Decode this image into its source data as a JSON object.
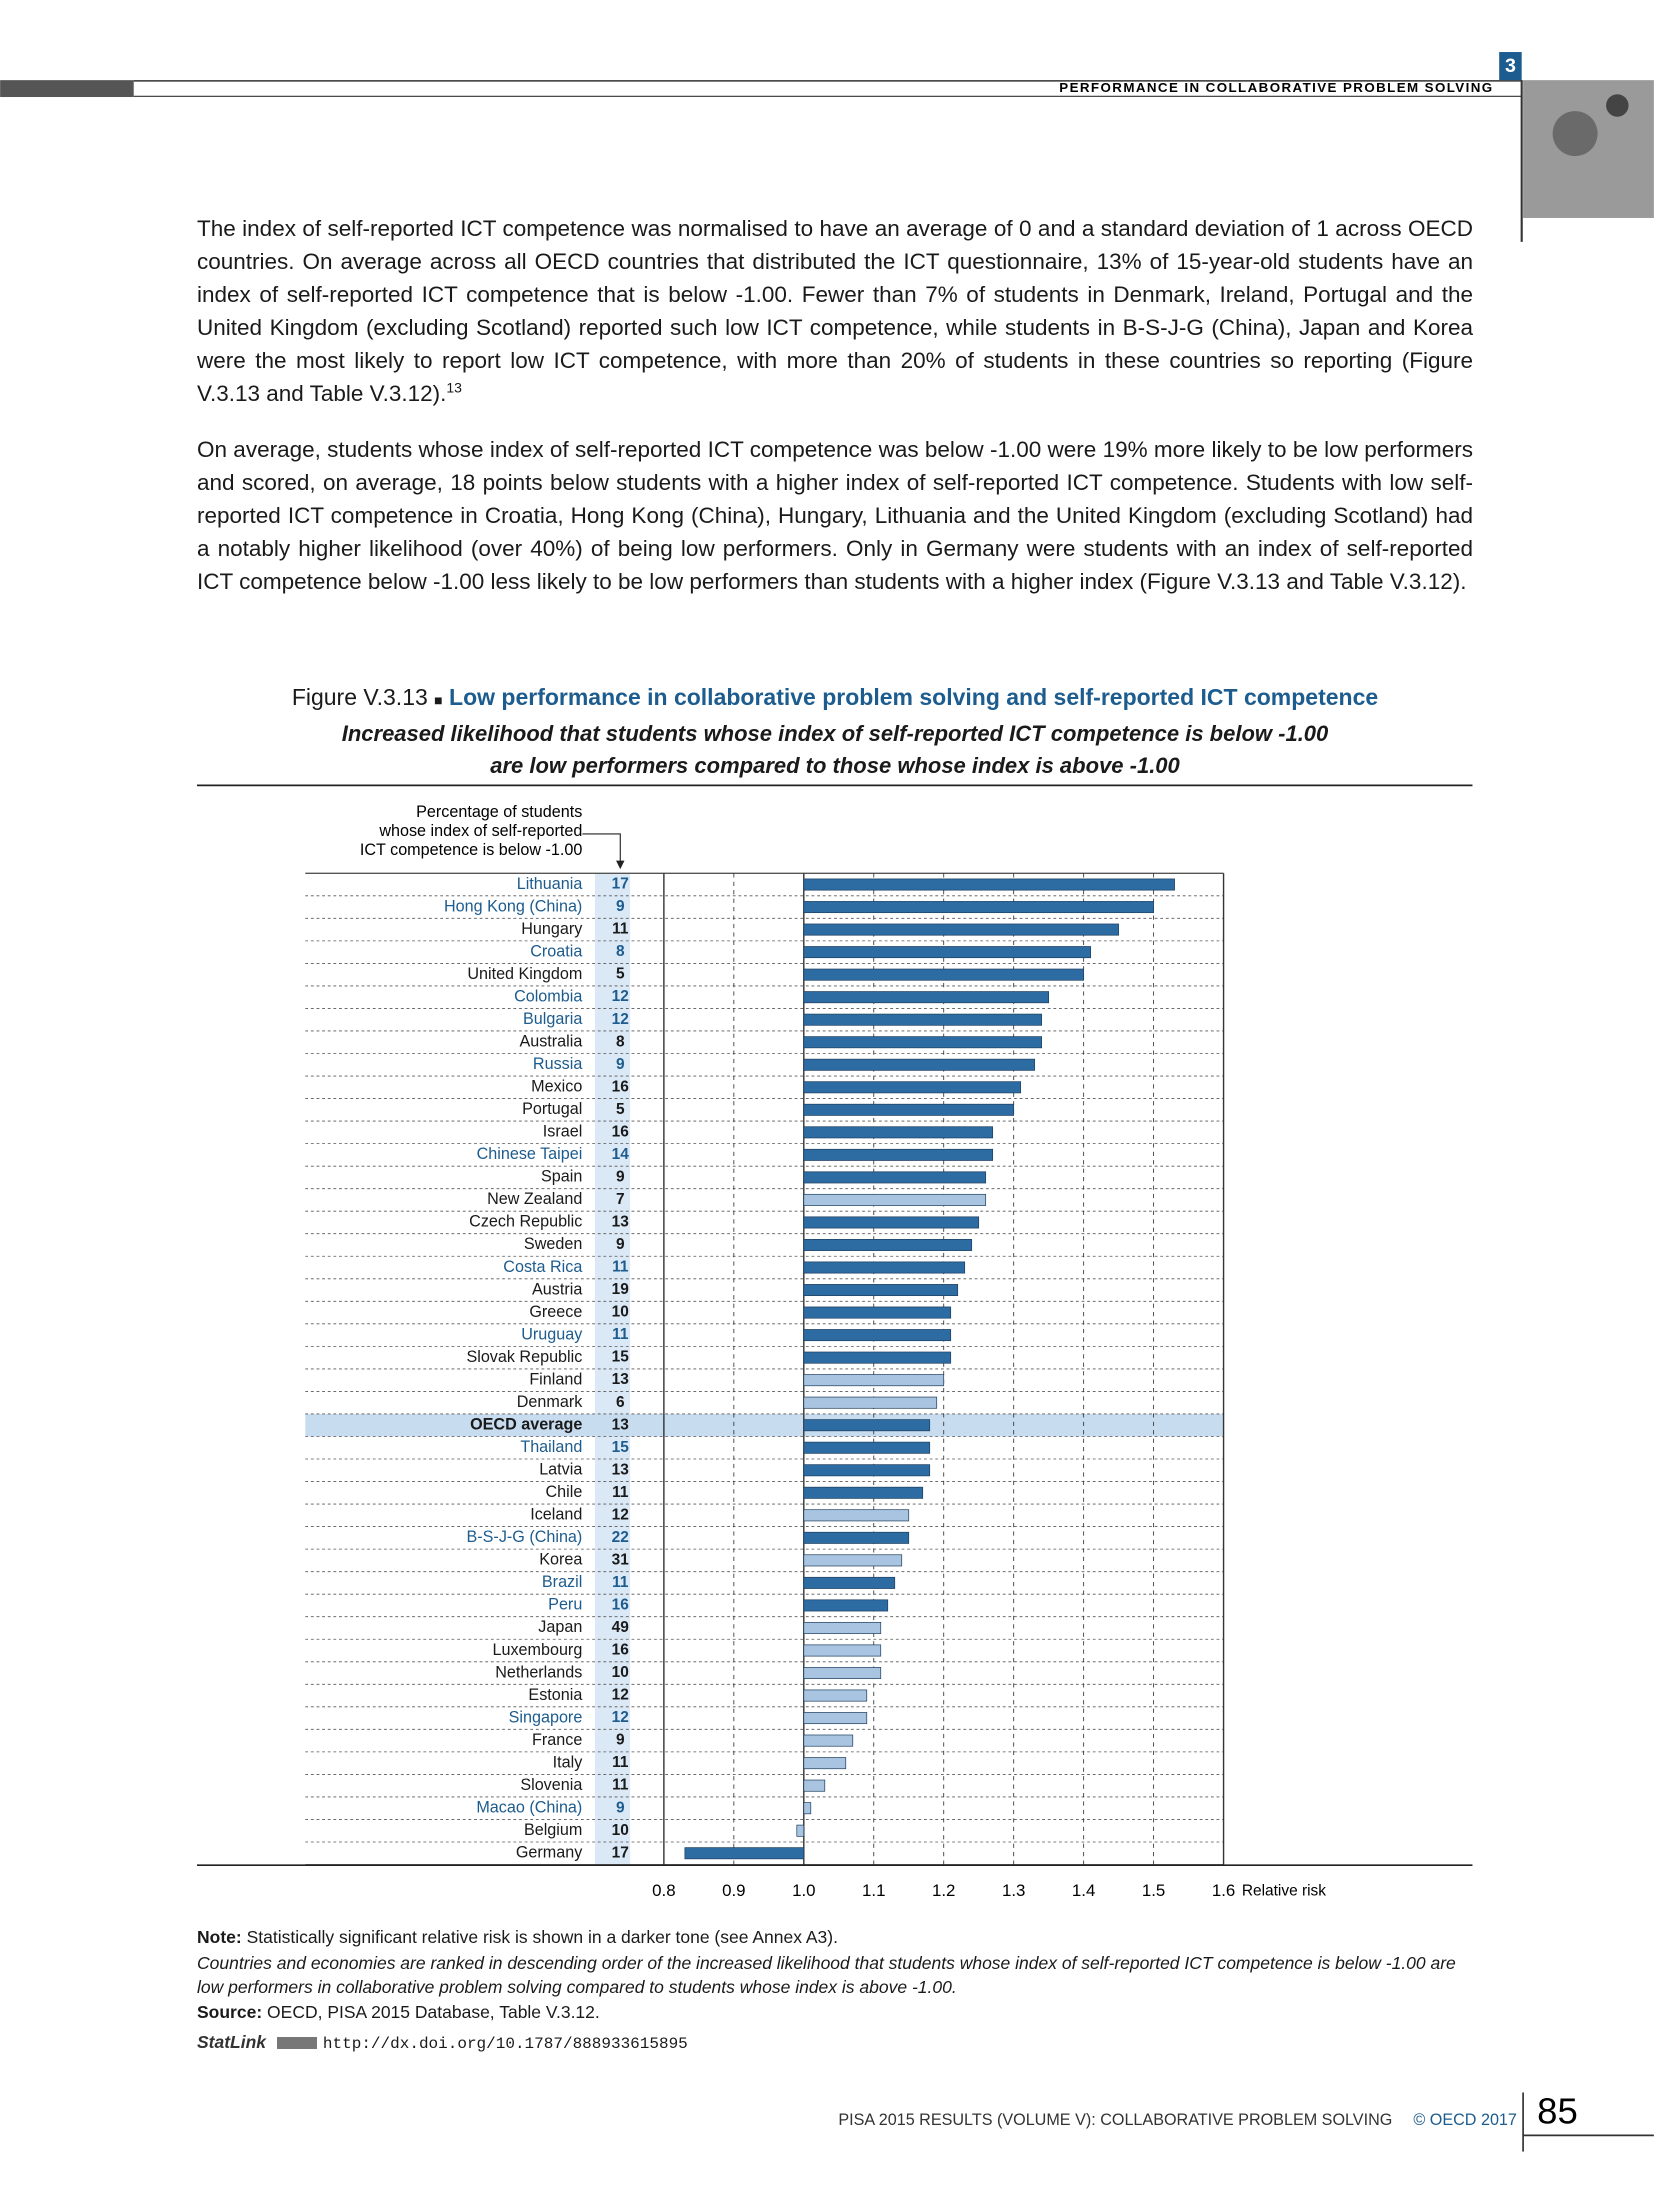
{
  "header": {
    "chapter_number": "3",
    "running_title": "PERFORMANCE IN COLLABORATIVE PROBLEM SOLVING"
  },
  "paragraphs": [
    {
      "text": "The index of self-reported ICT competence was normalised to have an average of 0 and a standard deviation of 1 across OECD countries. On average across all OECD countries that distributed the ICT questionnaire, 13% of 15-year-old students have an index of self-reported ICT competence that is below -1.00. Fewer than 7% of students in Denmark, Ireland, Portugal and the United Kingdom (excluding Scotland) reported such low ICT competence, while students in B-S-J-G (China), Japan and Korea were the most likely to report low ICT competence, with more than 20% of students in these countries so reporting (Figure V.3.13 and Table V.3.12).",
      "footnote": "13"
    },
    {
      "text": "On average, students whose index of self-reported ICT competence was below -1.00 were 19% more likely to be low performers and scored, on average, 18 points below students with a higher index of self-reported ICT competence. Students with low self-reported ICT competence in Croatia, Hong Kong (China), Hungary, Lithuania and the United Kingdom (excluding Scotland) had a notably higher likelihood (over 40%) of being low performers. Only in Germany were students with an index of self-reported ICT competence below -1.00 less likely to be low performers than students with a higher index (Figure V.3.13 and Table V.3.12)."
    }
  ],
  "chart_data": {
    "type": "hbar",
    "figure_label": "Figure V.3.13",
    "title": "Low performance in collaborative problem solving and self-reported ICT competence",
    "subtitle": [
      "Increased likelihood that students whose index of self-reported ICT competence is below -1.00",
      "are low performers compared to those whose index is above -1.00"
    ],
    "column_header": [
      "Percentage of students",
      "whose index of self-reported",
      "ICT competence is below -1.00"
    ],
    "categories": [
      "Lithuania",
      "Hong Kong (China)",
      "Hungary",
      "Croatia",
      "United Kingdom",
      "Colombia",
      "Bulgaria",
      "Australia",
      "Russia",
      "Mexico",
      "Portugal",
      "Israel",
      "Chinese Taipei",
      "Spain",
      "New Zealand",
      "Czech Republic",
      "Sweden",
      "Costa Rica",
      "Austria",
      "Greece",
      "Uruguay",
      "Slovak Republic",
      "Finland",
      "Denmark",
      "OECD average",
      "Thailand",
      "Latvia",
      "Chile",
      "Iceland",
      "B-S-J-G (China)",
      "Korea",
      "Brazil",
      "Peru",
      "Japan",
      "Luxembourg",
      "Netherlands",
      "Estonia",
      "Singapore",
      "France",
      "Italy",
      "Slovenia",
      "Macao (China)",
      "Belgium",
      "Germany"
    ],
    "percentages": [
      17,
      9,
      11,
      8,
      5,
      12,
      12,
      8,
      9,
      16,
      5,
      16,
      14,
      9,
      7,
      13,
      9,
      11,
      19,
      10,
      11,
      15,
      13,
      6,
      13,
      15,
      13,
      11,
      12,
      22,
      31,
      11,
      16,
      49,
      16,
      10,
      12,
      12,
      9,
      11,
      11,
      9,
      10,
      17
    ],
    "values": [
      1.53,
      1.5,
      1.45,
      1.41,
      1.4,
      1.35,
      1.34,
      1.34,
      1.33,
      1.31,
      1.3,
      1.27,
      1.27,
      1.26,
      1.26,
      1.25,
      1.24,
      1.23,
      1.22,
      1.21,
      1.21,
      1.21,
      1.2,
      1.19,
      1.18,
      1.18,
      1.18,
      1.17,
      1.15,
      1.15,
      1.14,
      1.13,
      1.12,
      1.11,
      1.11,
      1.11,
      1.09,
      1.09,
      1.07,
      1.06,
      1.03,
      1.01,
      0.99,
      0.83
    ],
    "significant": [
      true,
      true,
      true,
      true,
      true,
      true,
      true,
      true,
      true,
      true,
      true,
      true,
      true,
      true,
      false,
      true,
      true,
      true,
      true,
      true,
      true,
      true,
      false,
      false,
      true,
      true,
      true,
      true,
      false,
      true,
      false,
      true,
      true,
      false,
      false,
      false,
      false,
      false,
      false,
      false,
      false,
      false,
      false,
      true
    ],
    "partner": [
      true,
      true,
      false,
      true,
      false,
      true,
      true,
      false,
      true,
      false,
      false,
      false,
      true,
      false,
      false,
      false,
      false,
      true,
      false,
      false,
      true,
      false,
      false,
      false,
      false,
      true,
      false,
      false,
      false,
      true,
      false,
      true,
      true,
      false,
      false,
      false,
      false,
      true,
      false,
      false,
      false,
      true,
      false,
      false
    ],
    "highlight_category": "OECD average",
    "bar_origin": 1,
    "xlabel": "Relative risk",
    "xlim": [
      0.8,
      1.6
    ],
    "xticks": [
      0.8,
      0.9,
      {
        "value": 1,
        "label": "1.0"
      },
      1.1,
      1.2,
      1.3,
      1.4,
      1.5,
      1.6
    ],
    "colors": {
      "significant": "#2d6ba3",
      "not_significant": "#a8c4e0",
      "partner_label": "#1d5c8e",
      "oecd_label": "#1a1a1a",
      "highlight": "#c8dcef",
      "column": "#dbe8f5"
    }
  },
  "notes": {
    "note_label": "Note:",
    "note": "Statistically significant relative risk is shown in a darker tone (see Annex A3).",
    "ranking": "Countries and economies are ranked in descending order of the increased likelihood that students whose index of self-reported ICT competence is below -1.00 are low performers in collaborative problem solving compared to students whose index is above -1.00.",
    "source_label": "Source:",
    "source": "OECD, PISA 2015 Database, Table V.3.12.",
    "statlink_label": "StatLink",
    "statlink_url": "http://dx.doi.org/10.1787/888933615895"
  },
  "footer": {
    "publication": "PISA 2015 RESULTS (VOLUME V): COLLABORATIVE PROBLEM SOLVING",
    "copyright": "© OECD 2017",
    "page_number": "85"
  }
}
